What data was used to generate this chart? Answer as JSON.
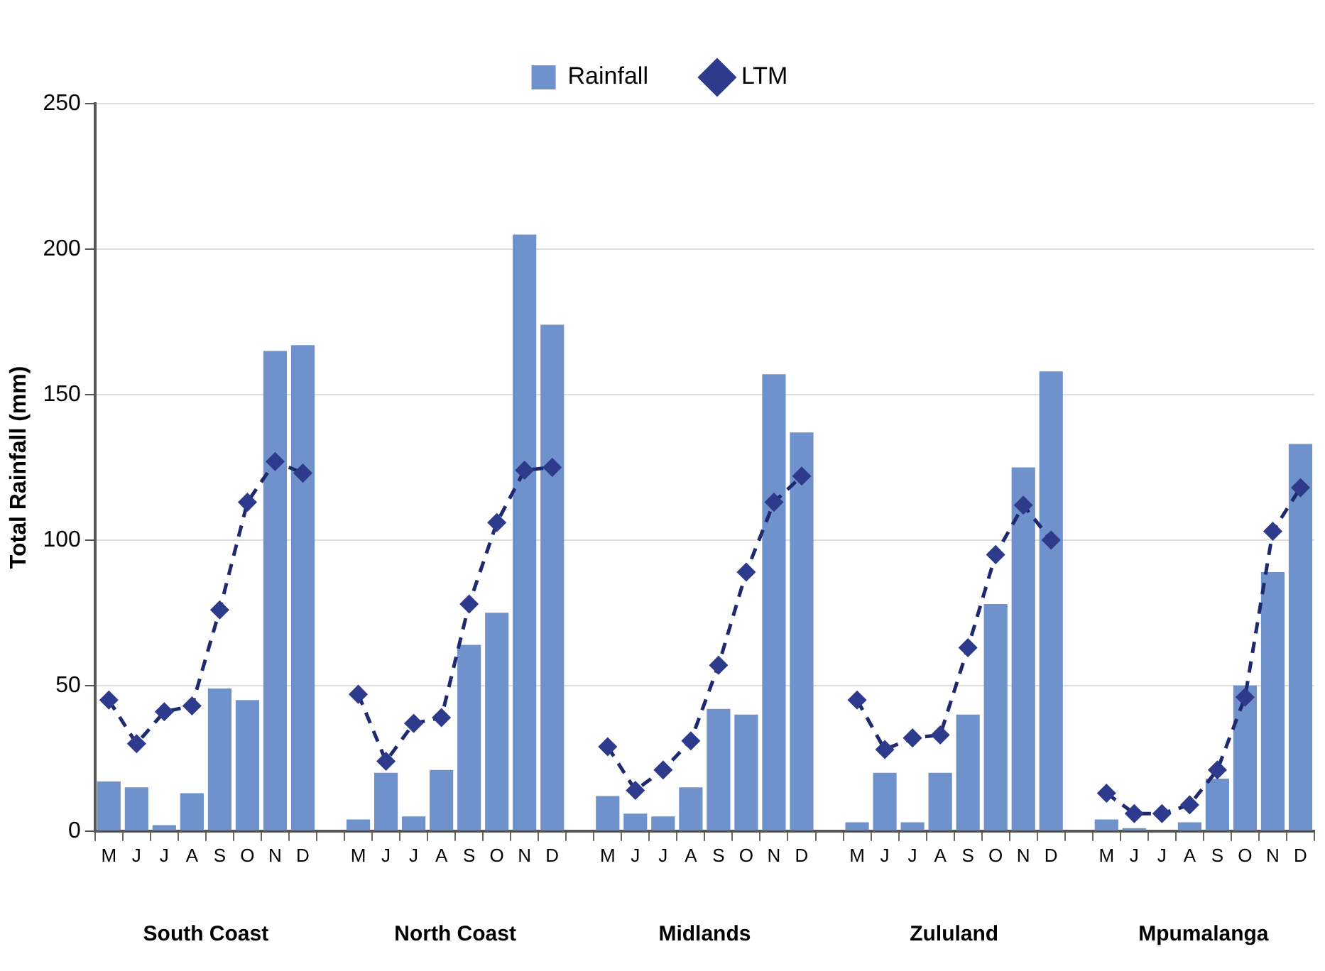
{
  "chart_data": {
    "type": "bar",
    "ylabel": "Total Rainfall (mm)",
    "categories": [
      "M",
      "J",
      "J",
      "A",
      "S",
      "O",
      "N",
      "D",
      null,
      "M",
      "J",
      "J",
      "A",
      "S",
      "O",
      "N",
      "D",
      null,
      "M",
      "J",
      "J",
      "A",
      "S",
      "O",
      "N",
      "D",
      null,
      "M",
      "J",
      "J",
      "A",
      "S",
      "O",
      "N",
      "D",
      null,
      "M",
      "J",
      "J",
      "A",
      "S",
      "O",
      "N",
      "D"
    ],
    "series": [
      {
        "name": "Rainfall",
        "color": "#7092cc",
        "values": [
          17,
          15,
          2,
          13,
          49,
          45,
          165,
          167,
          null,
          4,
          20,
          5,
          21,
          64,
          75,
          205,
          174,
          null,
          12,
          6,
          5,
          15,
          42,
          40,
          157,
          137,
          null,
          3,
          20,
          3,
          20,
          40,
          78,
          125,
          158,
          null,
          4,
          1,
          0,
          3,
          18,
          50,
          89,
          133
        ]
      },
      {
        "name": "LTM",
        "type": "line",
        "color": "#1f2a6e",
        "marker": "diamond",
        "line_style": "dashed",
        "values": [
          45,
          30,
          41,
          43,
          76,
          113,
          127,
          123,
          null,
          47,
          24,
          37,
          39,
          78,
          106,
          124,
          125,
          null,
          29,
          14,
          21,
          31,
          57,
          89,
          113,
          122,
          null,
          45,
          28,
          32,
          33,
          63,
          95,
          112,
          100,
          null,
          13,
          6,
          6,
          9,
          21,
          46,
          103,
          118
        ]
      }
    ],
    "annotations": [
      "South Coast",
      "North Coast",
      "Midlands",
      "Zululand",
      "Mpumalanga"
    ],
    "ylim": [
      0,
      250
    ],
    "yticks": [
      0,
      50,
      100,
      150,
      200,
      250
    ],
    "grid": "y",
    "legend": "top"
  }
}
